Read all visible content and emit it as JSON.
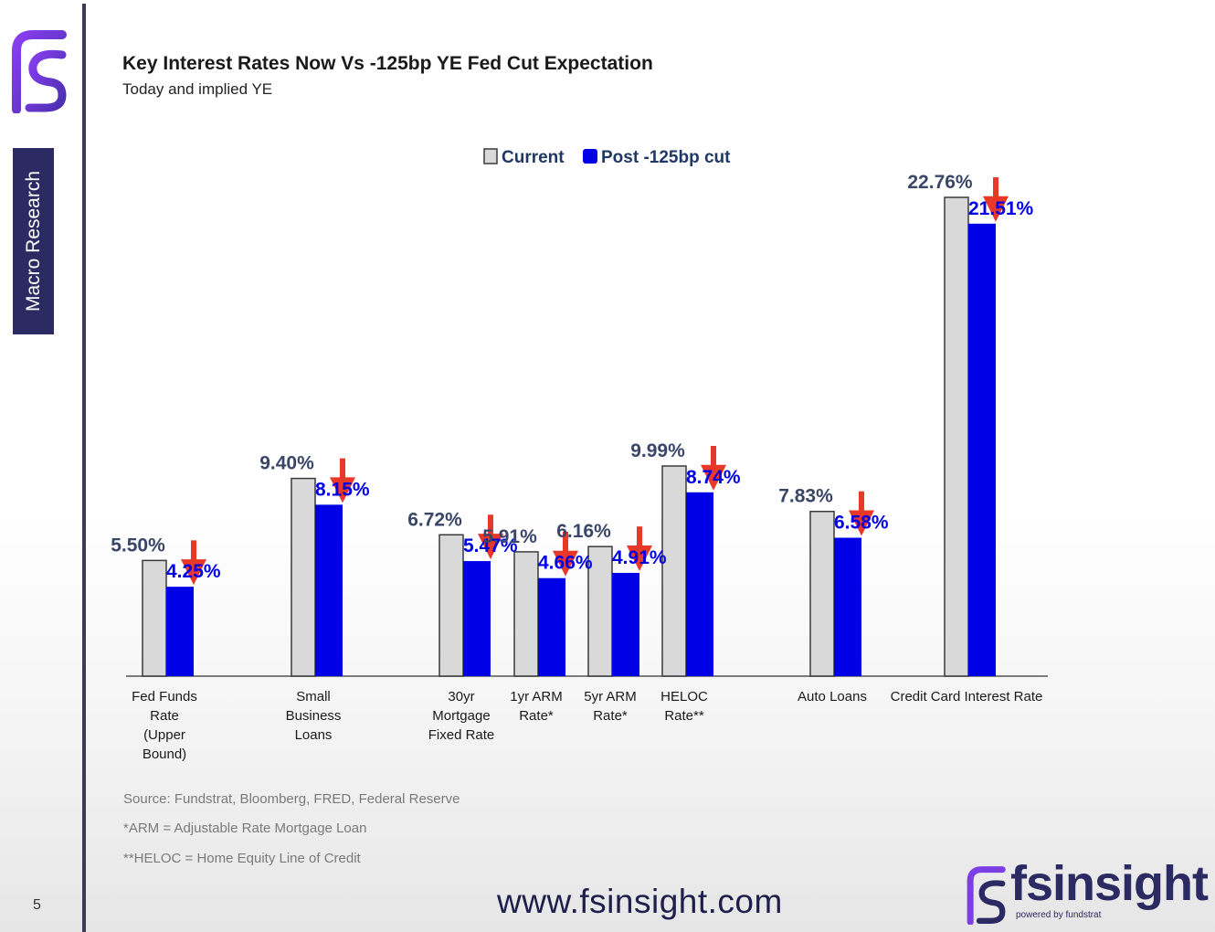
{
  "sidebar": {
    "section_label": "Macro Research",
    "page_number": "5"
  },
  "header": {
    "title": "Key Interest Rates Now Vs -125bp YE Fed Cut Expectation",
    "subtitle": "Today and implied YE"
  },
  "chart_data": {
    "type": "bar",
    "title": "Key Interest Rates Now Vs -125bp YE Fed Cut Expectation",
    "subtitle": "Today and implied YE",
    "categories": [
      "Fed Funds Rate (Upper Bound)",
      "Small Business Loans",
      "30yr Mortgage Fixed Rate",
      "1yr ARM Rate*",
      "5yr ARM Rate*",
      "HELOC Rate**",
      "Auto Loans",
      "Credit Card Interest Rate"
    ],
    "category_lines": [
      [
        "Fed Funds",
        "Rate",
        "(Upper",
        "Bound)"
      ],
      [
        "Small",
        "Business",
        "Loans"
      ],
      [
        "30yr",
        "Mortgage",
        "Fixed Rate"
      ],
      [
        "1yr ARM",
        "Rate*"
      ],
      [
        "5yr ARM",
        "Rate*"
      ],
      [
        "HELOC",
        "Rate**"
      ],
      [
        "Auto Loans"
      ],
      [
        "Credit Card Interest Rate"
      ]
    ],
    "series": [
      {
        "name": "Current",
        "color": "#d9d9d9",
        "label_color": "#3a4668",
        "values": [
          5.5,
          9.4,
          6.72,
          5.91,
          6.16,
          9.99,
          7.83,
          22.76
        ],
        "labels": [
          "5.50%",
          "9.40%",
          "6.72%",
          "5.91%",
          "6.16%",
          "9.99%",
          "7.83%",
          "22.76%"
        ]
      },
      {
        "name": "Post -125bp cut",
        "color": "#0000e6",
        "label_color": "#0000e6",
        "values": [
          4.25,
          8.15,
          5.47,
          4.66,
          4.91,
          8.74,
          6.58,
          21.51
        ],
        "labels": [
          "4.25%",
          "8.15%",
          "5.47%",
          "4.66%",
          "4.91%",
          "8.74%",
          "6.58%",
          "21.51%"
        ]
      }
    ],
    "arrow_color": "#e8382a",
    "ylim": [
      0,
      23.5
    ],
    "legend_position": "top-center",
    "grid": false
  },
  "footnotes": [
    "Source: Fundstrat, Bloomberg, FRED, Federal Reserve",
    "*ARM = Adjustable Rate Mortgage Loan",
    "**HELOC = Home Equity Line of Credit"
  ],
  "footer": {
    "website": "www.fsinsight.com",
    "brand_name": "fsinsight",
    "brand_tagline": "powered by fundstrat"
  },
  "colors": {
    "brand_navy": "#2b2a63",
    "brand_purple": "#7b3fe4"
  }
}
